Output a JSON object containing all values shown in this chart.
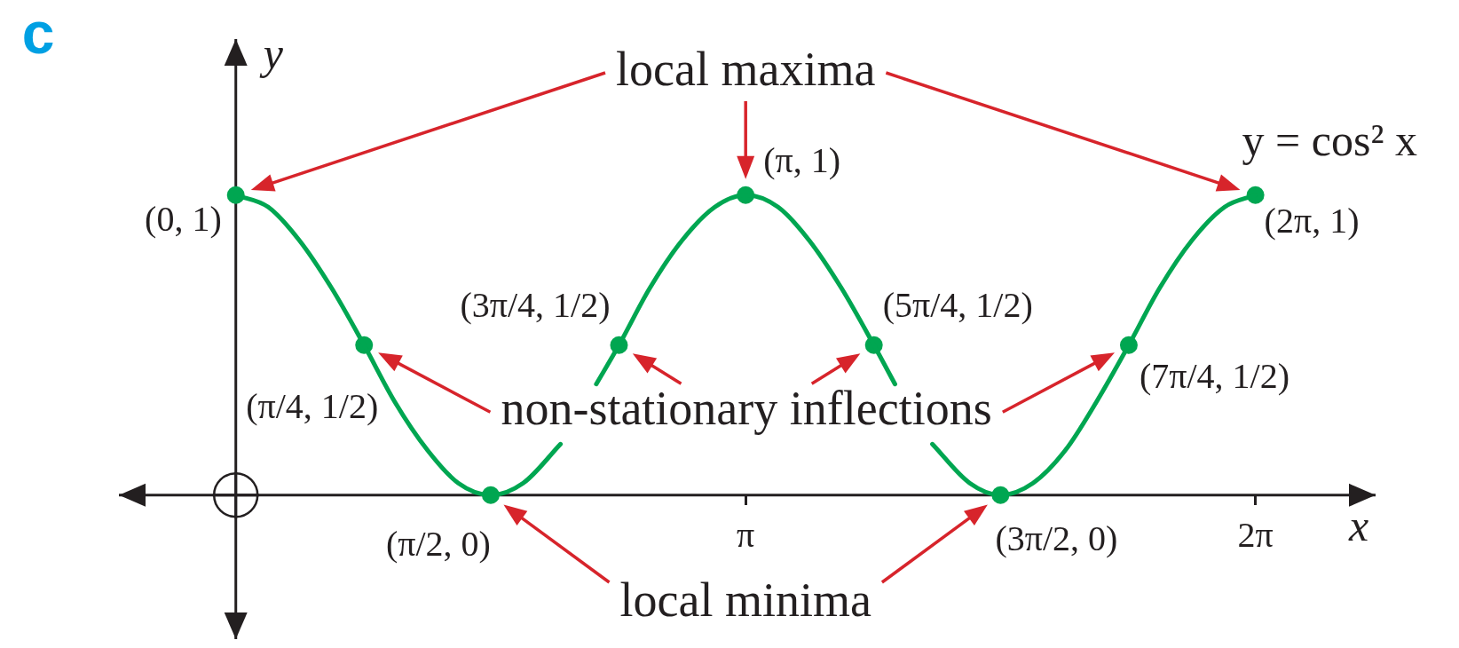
{
  "chart_data": {
    "type": "line",
    "title": "c",
    "xlabel": "x",
    "ylabel": "y",
    "xlim": [
      -0.72,
      7.02
    ],
    "ylim": [
      -0.48,
      1.52
    ],
    "xticks": [
      {
        "value": 3.14,
        "label": "π"
      },
      {
        "value": 6.28,
        "label": "2π"
      }
    ],
    "tick_labels": "x",
    "series": [
      {
        "name": "y = cos² x",
        "color": "#00a651",
        "marker": "none",
        "x": [
          0,
          0.2,
          0.39,
          0.59,
          0.79,
          0.98,
          1.18,
          1.37,
          1.57,
          1.77,
          2.0,
          2.11,
          2.22,
          2.36,
          2.55,
          2.75,
          2.95,
          3.14,
          3.34,
          3.53,
          3.73,
          3.93,
          4.06,
          4.17,
          4.29,
          4.52,
          4.71,
          4.91,
          5.11,
          5.3,
          5.5,
          5.69,
          5.89,
          6.09,
          6.28
        ],
        "values": [
          1,
          0.96,
          0.85,
          0.69,
          0.5,
          0.31,
          0.15,
          0.04,
          0,
          0.04,
          0.17,
          null,
          0.37,
          0.5,
          0.69,
          0.85,
          0.96,
          1,
          0.96,
          0.85,
          0.69,
          0.5,
          0.37,
          null,
          0.17,
          0.04,
          0,
          0.04,
          0.15,
          0.31,
          0.5,
          0.69,
          0.85,
          0.96,
          1
        ]
      },
      {
        "type": "scatter",
        "color": "#00a651",
        "marker": "circle",
        "x": [
          0,
          0.79,
          1.57,
          2.36,
          3.14,
          3.93,
          4.71,
          5.5,
          6.28
        ],
        "values": [
          1,
          0.5,
          0,
          0.5,
          1,
          0.5,
          0,
          0.5,
          1
        ],
        "value_labels": [
          "(0, 1)",
          "(π/4, 1/2)",
          "(π/2, 0)",
          "(3π/4, 1/2)",
          "(π, 1)",
          "(5π/4, 1/2)",
          "(3π/2, 0)",
          "(7π/4, 1/2)",
          "(2π, 1)"
        ]
      }
    ],
    "annotations": [
      "local maxima",
      "non-stationary inflections",
      "local minima"
    ]
  }
}
